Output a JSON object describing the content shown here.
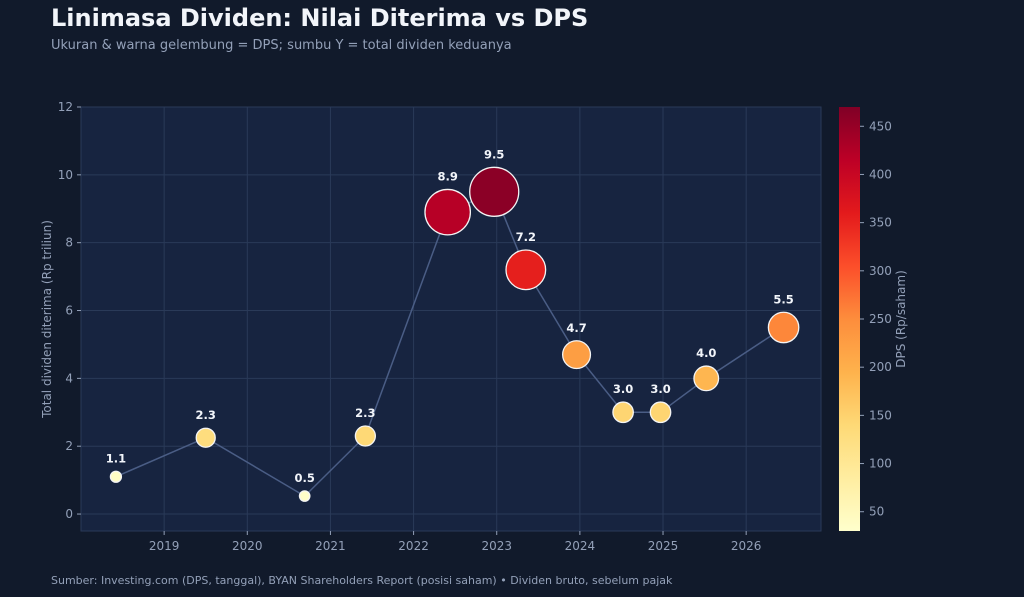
{
  "title": "Linimasa Dividen: Nilai Diterima vs DPS",
  "subtitle": "Ukuran & warna gelembung = DPS; sumbu Y = total dividen keduanya",
  "footer": "Sumber: Investing.com (DPS, tanggal), BYAN Shareholders Report (posisi saham) • Dividen bruto, sebelum pajak",
  "colors": {
    "background": "#111a2b",
    "plot_background": "#172440",
    "grid": "#2a3a58",
    "line": "#4a5d85",
    "text": "#93a0b8",
    "label": "#f2f5fa"
  },
  "chart_data": {
    "type": "scatter",
    "style": "bubble",
    "ylabel": "Total dividen diterima (Rp triliun)",
    "xlabel": "",
    "xticks": [
      "2019",
      "2020",
      "2021",
      "2022",
      "2023",
      "2024",
      "2025",
      "2026"
    ],
    "xlim": [
      2018.0,
      2026.9
    ],
    "ylim": [
      -0.5,
      12
    ],
    "yticks": [
      0,
      2,
      4,
      6,
      8,
      10,
      12
    ],
    "grid": true,
    "colorbar": {
      "label": "DPS (Rp/saham)",
      "range": [
        30,
        470
      ],
      "ticks": [
        50,
        100,
        150,
        200,
        250,
        300,
        350,
        400,
        450
      ],
      "colormap": "YlOrRd"
    },
    "points": [
      {
        "x": 2018.42,
        "y": 1.1,
        "label": "1.1",
        "dps": 40
      },
      {
        "x": 2019.5,
        "y": 2.25,
        "label": "2.3",
        "dps": 130
      },
      {
        "x": 2020.69,
        "y": 0.53,
        "label": "0.5",
        "dps": 35
      },
      {
        "x": 2021.42,
        "y": 2.3,
        "label": "2.3",
        "dps": 140
      },
      {
        "x": 2022.41,
        "y": 8.9,
        "label": "8.9",
        "dps": 420
      },
      {
        "x": 2022.97,
        "y": 9.5,
        "label": "9.5",
        "dps": 460
      },
      {
        "x": 2023.35,
        "y": 7.2,
        "label": "7.2",
        "dps": 355
      },
      {
        "x": 2023.96,
        "y": 4.7,
        "label": "4.7",
        "dps": 225
      },
      {
        "x": 2024.52,
        "y": 3.0,
        "label": "3.0",
        "dps": 145
      },
      {
        "x": 2024.97,
        "y": 3.0,
        "label": "3.0",
        "dps": 145
      },
      {
        "x": 2025.52,
        "y": 4.0,
        "label": "4.0",
        "dps": 190
      },
      {
        "x": 2026.45,
        "y": 5.5,
        "label": "5.5",
        "dps": 255
      }
    ]
  }
}
